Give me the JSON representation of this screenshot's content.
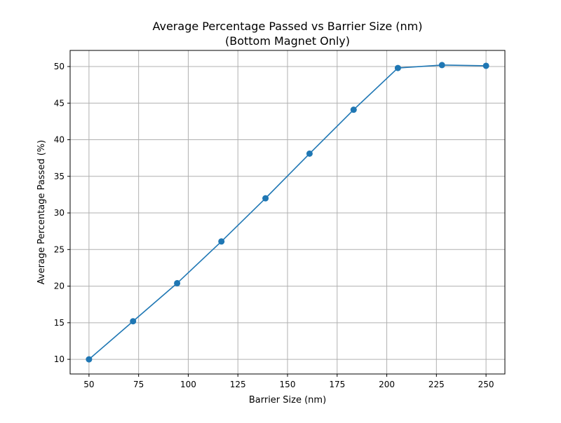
{
  "chart_data": {
    "type": "line",
    "title": "Average Percentage Passed vs Barrier Size (nm)",
    "subtitle": "(Bottom Magnet Only)",
    "xlabel": "Barrier Size (nm)",
    "ylabel": "Average Percentage Passed (%)",
    "xlim": [
      40.5,
      259.5
    ],
    "ylim": [
      8.0,
      52.2
    ],
    "xticks": [
      50,
      75,
      100,
      125,
      150,
      175,
      200,
      225,
      250
    ],
    "yticks": [
      10,
      15,
      20,
      25,
      30,
      35,
      40,
      45,
      50
    ],
    "grid": true,
    "series": [
      {
        "color": "#1f77b4",
        "marker": "circle",
        "x": [
          50,
          72.2,
          94.4,
          116.7,
          138.9,
          161.1,
          183.3,
          205.6,
          227.8,
          250
        ],
        "y": [
          10.0,
          15.2,
          20.4,
          26.1,
          32.0,
          38.1,
          44.1,
          49.8,
          50.2,
          50.1
        ]
      }
    ]
  }
}
